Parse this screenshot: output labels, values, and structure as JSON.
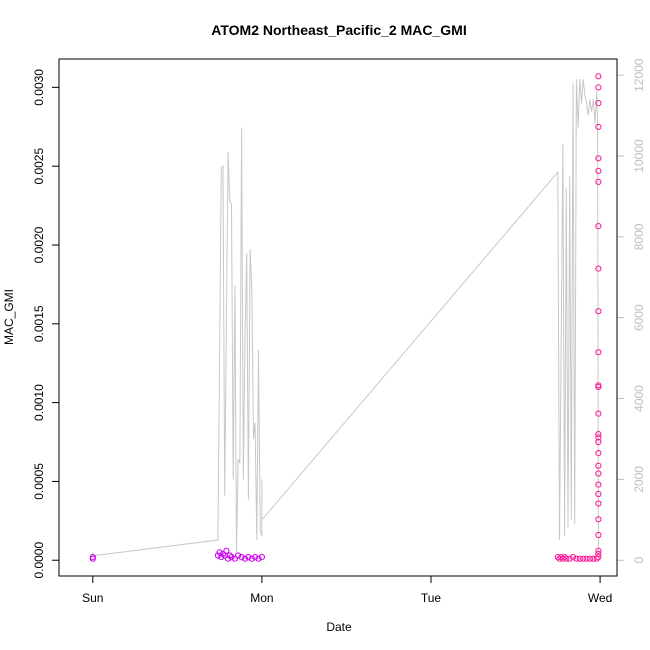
{
  "chart_data": {
    "type": "scatter",
    "title": "ATOM2 Northeast_Pacific_2 MAC_GMI",
    "xlabel": "Date",
    "ylabel": "MAC_GMI",
    "x_ticks": [
      "Sun",
      "Mon",
      "Tue",
      "Wed"
    ],
    "x_range_days": [
      -0.2,
      3.1
    ],
    "ylim": [
      -0.0001,
      0.00318
    ],
    "y_ticks": [
      "0.0000",
      "0.0005",
      "0.0010",
      "0.0015",
      "0.0020",
      "0.0025",
      "0.0030"
    ],
    "y_right_lim": [
      -390,
      12400
    ],
    "y_right_ticks": [
      "0",
      "2000",
      "4000",
      "6000",
      "8000",
      "10000",
      "12000"
    ],
    "colors": {
      "points_early": "#cc00ee",
      "points_late": "#ff1493",
      "line": "#c8c8c8",
      "axis": "#000000",
      "right_axis": "#bebebe"
    },
    "series": [
      {
        "axis": "left",
        "style": "points",
        "x": [
          0.0,
          0.0,
          0.74,
          0.75,
          0.76,
          0.77,
          0.78,
          0.79,
          0.8,
          0.81,
          0.82,
          0.84,
          0.86,
          0.88,
          0.9,
          0.92,
          0.94,
          0.96,
          0.98,
          1.0,
          2.75,
          2.76,
          2.77,
          2.78,
          2.79,
          2.8,
          2.82,
          2.84,
          2.86,
          2.88,
          2.9,
          2.92,
          2.94,
          2.96,
          2.98,
          2.99,
          2.99,
          2.99,
          2.99,
          2.99,
          2.99,
          2.99,
          2.99,
          2.99,
          2.99,
          2.99,
          2.99,
          2.99,
          2.99,
          2.99,
          2.99,
          2.99,
          2.99,
          2.99,
          2.99,
          2.99,
          2.99,
          2.99,
          2.99,
          2.99,
          2.99,
          2.99,
          2.99
        ],
        "y": [
          2e-05,
          1e-05,
          3e-05,
          5e-05,
          2e-05,
          4e-05,
          3e-05,
          6e-05,
          1e-05,
          3e-05,
          2e-05,
          1e-05,
          3e-05,
          2e-05,
          1e-05,
          2e-05,
          1e-05,
          2e-05,
          1e-05,
          2e-05,
          2e-05,
          1e-05,
          2e-05,
          1e-05,
          2e-05,
          1e-05,
          1e-05,
          2e-05,
          1e-05,
          1e-05,
          1e-05,
          1e-05,
          1e-05,
          1e-05,
          1e-05,
          2e-05,
          4e-05,
          6e-05,
          0.00016,
          0.00026,
          0.00036,
          0.00042,
          0.00048,
          0.00055,
          0.0006,
          0.00068,
          0.00075,
          0.00078,
          0.0008,
          0.00093,
          0.0011,
          0.00111,
          0.00132,
          0.00158,
          0.00185,
          0.00212,
          0.0024,
          0.00247,
          0.00255,
          0.00275,
          0.003,
          0.0029,
          0.00307
        ]
      },
      {
        "axis": "right",
        "style": "line",
        "x": [
          0.0,
          0.0,
          0.74,
          0.76,
          0.77,
          0.78,
          0.8,
          0.81,
          0.82,
          0.83,
          0.84,
          0.85,
          0.86,
          0.87,
          0.88,
          0.89,
          0.9,
          0.91,
          0.92,
          0.93,
          0.94,
          0.95,
          0.96,
          0.97,
          0.98,
          0.99,
          1.0,
          1.0,
          1.0,
          2.75,
          2.76,
          2.78,
          2.79,
          2.8,
          2.81,
          2.82,
          2.83,
          2.84,
          2.85,
          2.86,
          2.87,
          2.88,
          2.89,
          2.9,
          2.91,
          2.92,
          2.93,
          2.94,
          2.95,
          2.96,
          2.97,
          2.98,
          2.985,
          2.99
        ],
        "y": [
          200,
          110,
          500,
          9700,
          9750,
          1600,
          10100,
          8900,
          8800,
          2000,
          6800,
          200,
          2500,
          2400,
          10700,
          2000,
          5500,
          7600,
          1500,
          7700,
          6700,
          3000,
          3400,
          500,
          5200,
          750,
          600,
          2000,
          1000,
          9600,
          500,
          10300,
          600,
          9200,
          800,
          9500,
          1000,
          11800,
          900,
          11900,
          10700,
          11900,
          11300,
          11900,
          11500,
          11300,
          11000,
          11400,
          11100,
          11400,
          10800,
          11600,
          10800,
          200
        ]
      }
    ]
  }
}
